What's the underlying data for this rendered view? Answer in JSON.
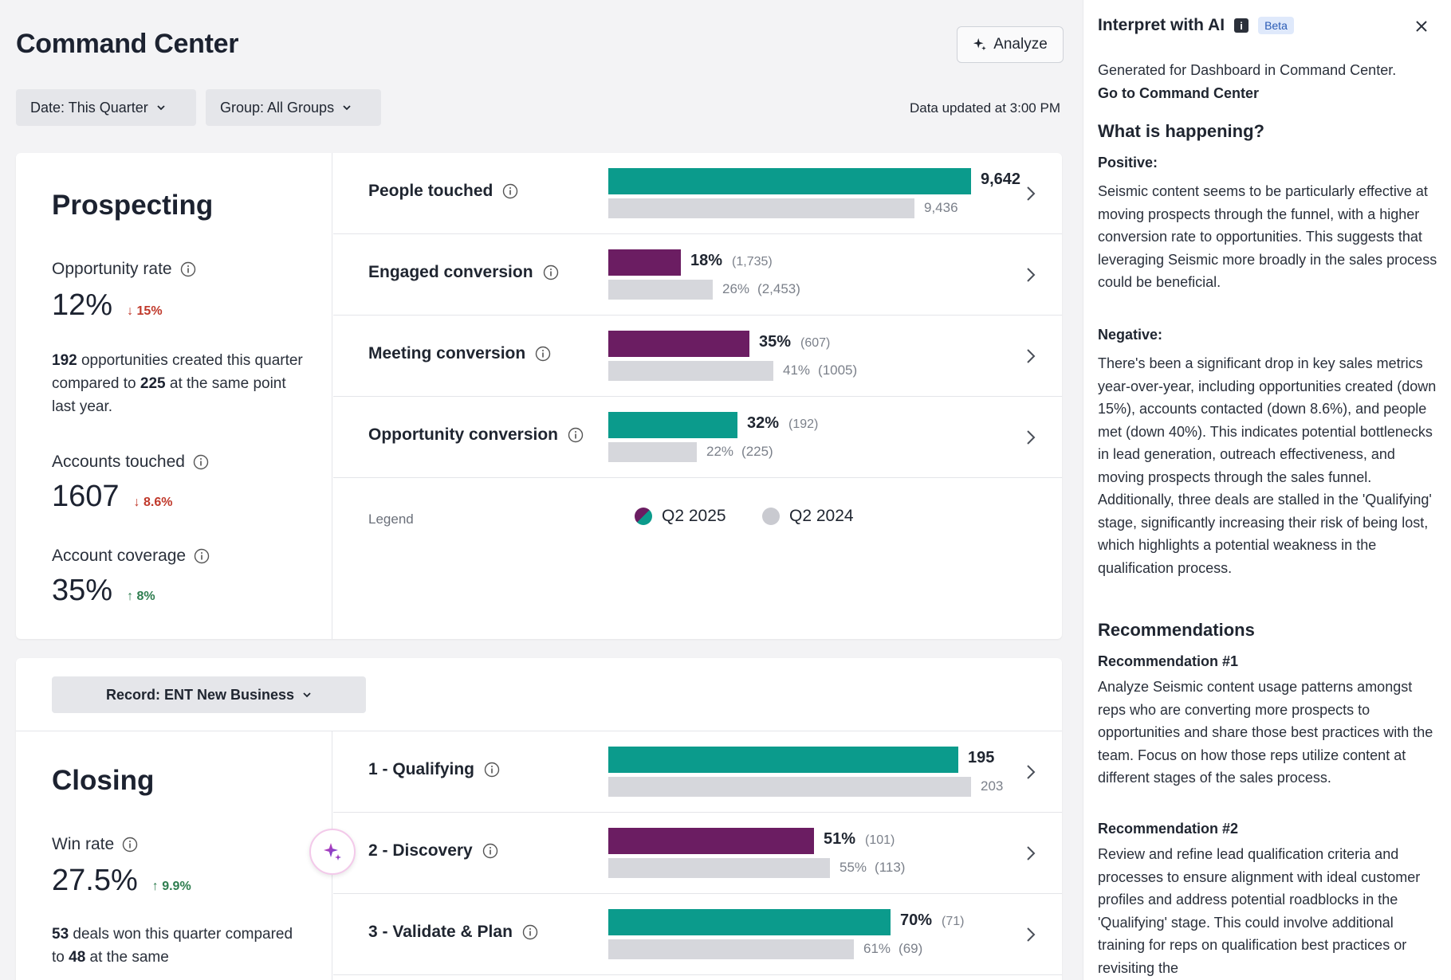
{
  "header": {
    "title": "Command Center",
    "analyze_label": "Analyze",
    "date_filter": "Date: This Quarter",
    "group_filter": "Group: All Groups",
    "data_updated": "Data updated at 3:00 PM"
  },
  "prospecting": {
    "title": "Prospecting",
    "opportunity_rate": {
      "label": "Opportunity rate",
      "value": "12%",
      "delta": "15%",
      "direction": "down"
    },
    "opportunity_desc": {
      "count": "192",
      "mid": " opportunities created this quarter compared to ",
      "prev": "225",
      "end": " at the same point last year."
    },
    "accounts_touched": {
      "label": "Accounts touched",
      "value": "1607",
      "delta": "8.6%",
      "direction": "down"
    },
    "account_coverage": {
      "label": "Account coverage",
      "value": "35%",
      "delta": "8%",
      "direction": "up"
    },
    "rows": [
      {
        "label": "People touched",
        "current": "9,642",
        "current_sub": "",
        "previous": "9,436",
        "previous_sub": "",
        "current_fraction": 0.9,
        "previous_fraction": 0.76,
        "color": "#0b9b8c"
      },
      {
        "label": "Engaged conversion",
        "current": "18%",
        "current_sub": "(1,735)",
        "previous": "26%",
        "previous_sub": "(2,453)",
        "current_fraction": 0.18,
        "previous_fraction": 0.26,
        "color": "#6b1d62"
      },
      {
        "label": "Meeting conversion",
        "current": "35%",
        "current_sub": "(607)",
        "previous": "41%",
        "previous_sub": "(1005)",
        "current_fraction": 0.35,
        "previous_fraction": 0.41,
        "color": "#6b1d62"
      },
      {
        "label": "Opportunity conversion",
        "current": "32%",
        "current_sub": "(192)",
        "previous": "22%",
        "previous_sub": "(225)",
        "current_fraction": 0.32,
        "previous_fraction": 0.22,
        "color": "#0b9b8c"
      }
    ],
    "legend": {
      "label": "Legend",
      "current": "Q2 2025",
      "previous": "Q2 2024"
    }
  },
  "closing": {
    "record_filter": "Record: ENT New Business",
    "title": "Closing",
    "win_rate": {
      "label": "Win rate",
      "value": "27.5%",
      "delta": "9.9%",
      "direction": "up"
    },
    "win_desc": {
      "count": "53",
      "mid": " deals won this quarter compared to ",
      "prev": "48",
      "end": " at the same"
    },
    "rows": [
      {
        "label": "1 - Qualifying",
        "current": "195",
        "current_sub": "",
        "previous": "203",
        "previous_sub": "",
        "current_fraction": 0.87,
        "previous_fraction": 0.9,
        "color": "#0b9b8c"
      },
      {
        "label": "2 - Discovery",
        "current": "51%",
        "current_sub": "(101)",
        "previous": "55%",
        "previous_sub": "(113)",
        "current_fraction": 0.51,
        "previous_fraction": 0.55,
        "color": "#6b1d62"
      },
      {
        "label": "3 - Validate & Plan",
        "current": "70%",
        "current_sub": "(71)",
        "previous": "61%",
        "previous_sub": "(69)",
        "current_fraction": 0.7,
        "previous_fraction": 0.61,
        "color": "#0b9b8c"
      }
    ]
  },
  "ai_panel": {
    "title": "Interpret with AI",
    "info_glyph": "i",
    "beta": "Beta",
    "generated": "Generated for Dashboard in Command Center.",
    "goto": "Go to Command Center",
    "what_heading": "What is happening?",
    "positive_heading": "Positive:",
    "positive_text": "Seismic content seems to be particularly effective at moving prospects through the funnel, with a higher conversion rate to opportunities. This suggests that leveraging Seismic more broadly in the sales process could be beneficial.",
    "negative_heading": "Negative:",
    "negative_text": "There's been a significant drop in key sales metrics year-over-year, including opportunities created (down 15%), accounts contacted (down 8.6%), and people met (down 40%). This indicates potential bottlenecks in lead generation, outreach effectiveness, and moving prospects through the sales funnel. Additionally, three deals are stalled in the 'Qualifying' stage, significantly increasing their risk of being lost, which highlights a potential weakness in the qualification process.",
    "recommendations_heading": "Recommendations",
    "rec1_heading": "Recommendation #1",
    "rec1_text": "Analyze Seismic content usage patterns amongst reps who are converting more prospects to opportunities and share those best practices with the team. Focus on how those reps utilize content at different stages of the sales process.",
    "rec2_heading": "Recommendation #2",
    "rec2_text": "Review and refine lead qualification criteria and processes to ensure alignment with ideal customer profiles and address potential roadblocks in the 'Qualifying' stage. This could involve additional training for reps on qualification best practices or revisiting the"
  },
  "colors": {
    "teal": "#0b9b8c",
    "purple": "#6b1d62",
    "gray": "#d6d7dc",
    "down": "#c0392b",
    "up": "#2e7d4f"
  }
}
